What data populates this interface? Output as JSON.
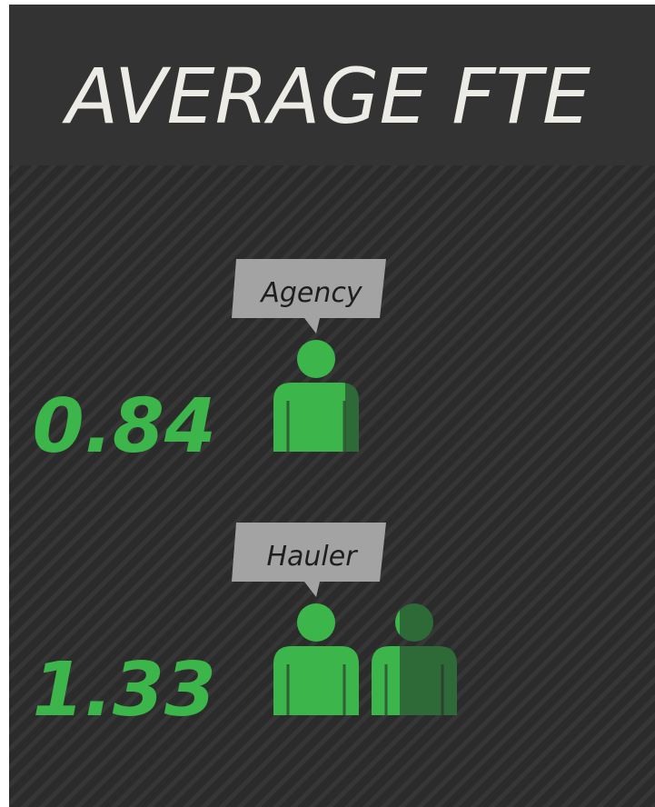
{
  "chart_data": {
    "type": "pictograph",
    "title": "AVERAGE FTE",
    "categories": [
      "Agency",
      "Hauler"
    ],
    "values": [
      0.84,
      1.33
    ],
    "color": "#3cb54a"
  }
}
